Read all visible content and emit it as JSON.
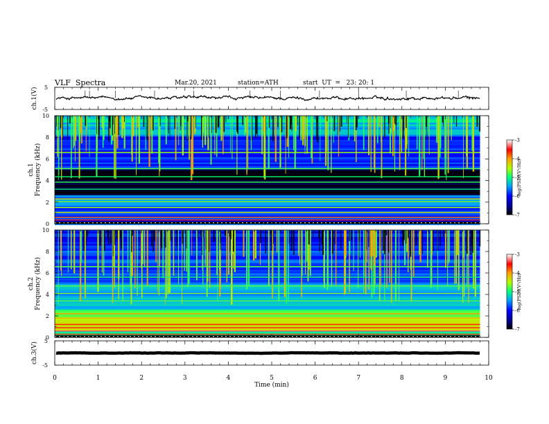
{
  "header": {
    "title": "VLF  Spectra",
    "date": "Mar.20, 2021",
    "station": "station=ATH",
    "start": "start  UT  =   23: 20: 1"
  },
  "chart_data": [
    {
      "type": "line",
      "name": "ch1-waveform",
      "ylabel": "ch.1(V)",
      "ylim": [
        -5,
        5
      ],
      "yticks": [
        "5",
        "-5"
      ],
      "xlim": [
        0,
        10
      ],
      "baseline": 0.1,
      "amplitude": 0.5
    },
    {
      "type": "heatmap",
      "name": "ch1-spectrogram",
      "ylabel": "ch.1\nFrequency  (kHz)",
      "ylim": [
        0,
        10
      ],
      "yticks": [
        "0",
        "2",
        "4",
        "6",
        "8",
        "10"
      ],
      "xlim": [
        0,
        10
      ],
      "data_end_min": 9.8,
      "colorbar": {
        "label": "log(PSD)(V²/Hz)",
        "range": [
          -7,
          -3
        ],
        "ticks": [
          "-3",
          "-4",
          "-5",
          "-6",
          "-7"
        ]
      }
    },
    {
      "type": "heatmap",
      "name": "ch2-spectrogram",
      "ylabel": "ch.2\nFrequency  (kHz)",
      "ylim": [
        0,
        10
      ],
      "yticks": [
        "0",
        "2",
        "4",
        "6",
        "8",
        "10"
      ],
      "xlim": [
        0,
        10
      ],
      "data_end_min": 9.8,
      "colorbar": {
        "label": "log(PSD)(V²/Hz)",
        "range": [
          -7,
          -3
        ],
        "ticks": [
          "-3",
          "-4",
          "-5",
          "-6",
          "-7"
        ]
      }
    },
    {
      "type": "line",
      "name": "ch3-waveform",
      "ylabel": "ch.3(V)",
      "ylim": [
        -5,
        5
      ],
      "yticks": [
        "5",
        "-5"
      ],
      "xlim": [
        0,
        10
      ],
      "baseline": 0,
      "amplitude": 0.05
    }
  ],
  "xaxis": {
    "label": "Time  (min)",
    "ticks": [
      "0",
      "1",
      "2",
      "3",
      "4",
      "5",
      "6",
      "7",
      "8",
      "9",
      "10"
    ],
    "range": [
      0,
      10
    ]
  }
}
